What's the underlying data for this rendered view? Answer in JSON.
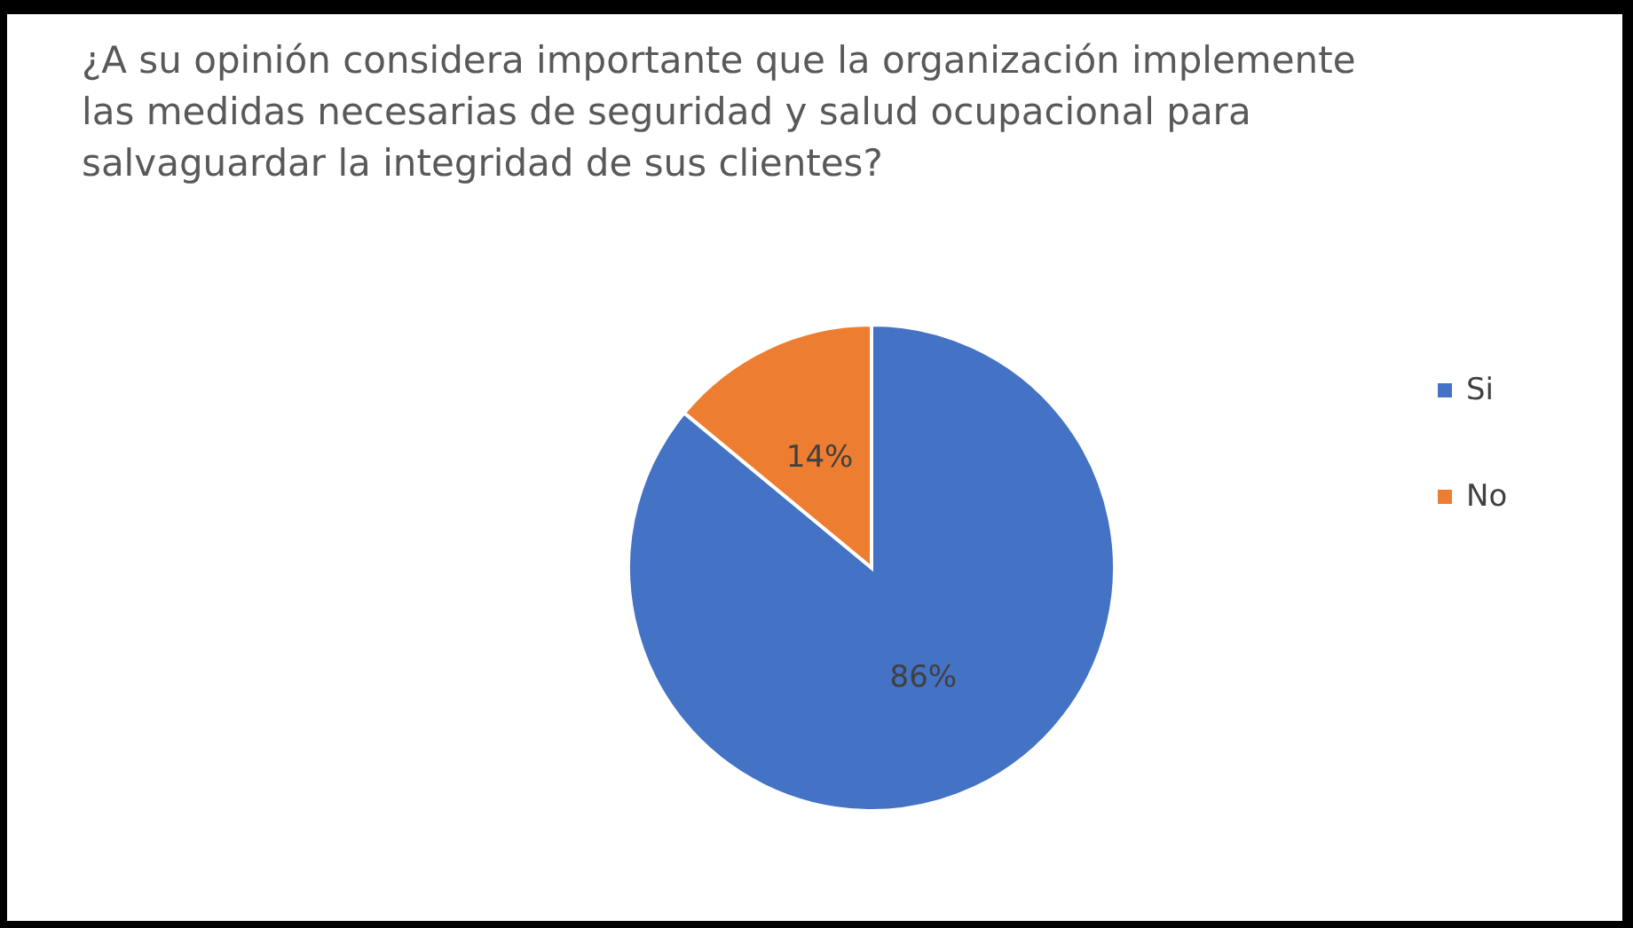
{
  "chart_data": {
    "type": "pie",
    "title": "¿A su opinión considera importante que la organización implemente las medidas necesarias de seguridad y salud ocupacional para salvaguardar la integridad de sus clientes?",
    "categories": [
      "Si",
      "No"
    ],
    "values": [
      86,
      14
    ],
    "colors": [
      "#4472c4",
      "#ed7d31"
    ],
    "value_labels": [
      "86%",
      "14%"
    ],
    "legend": "right"
  }
}
